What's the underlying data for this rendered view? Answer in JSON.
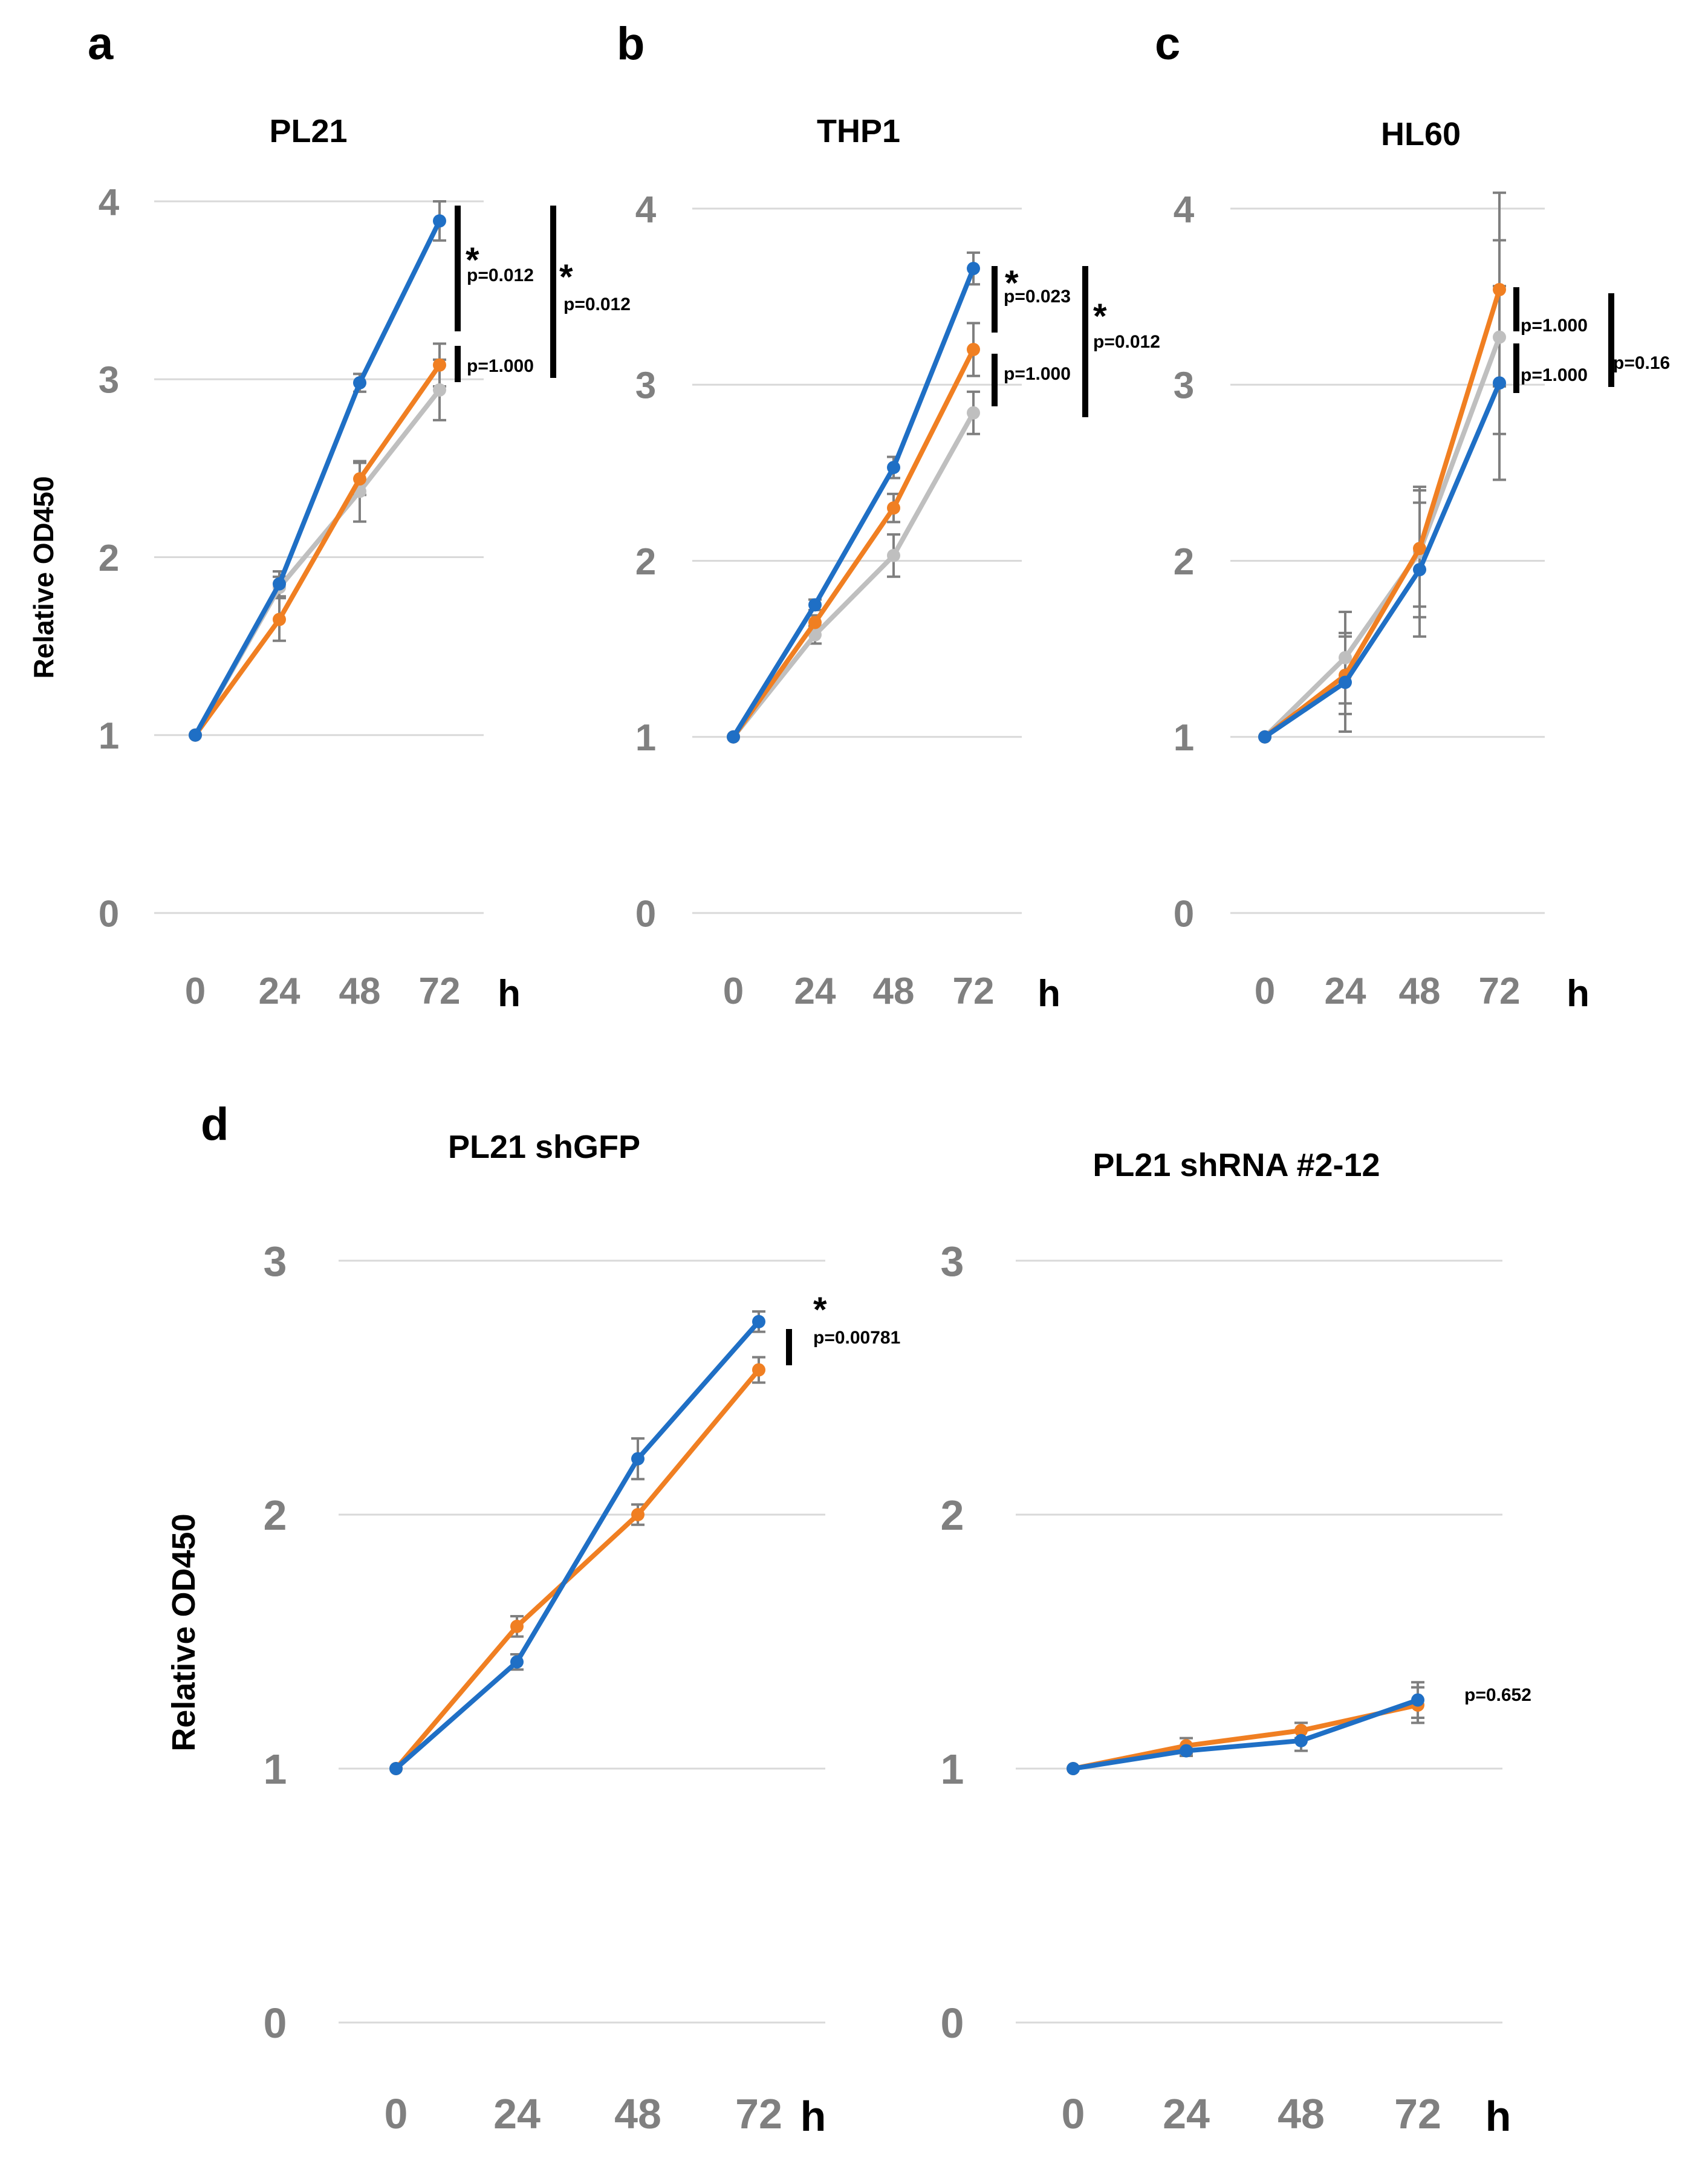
{
  "colors": {
    "blue": "#1f6fc5",
    "orange": "#f07f22",
    "gray": "#bfbfbf",
    "grid": "#d9d9d9",
    "tick": "#808080",
    "errorbar": "#7f7f7f"
  },
  "y_axis_label": "Relative OD450",
  "chart_data": [
    {
      "type": "line",
      "panel": "a",
      "title": "PL21",
      "categories": [
        "0",
        "24",
        "48",
        "72"
      ],
      "xunit": "h",
      "ylabel": "Relative OD450",
      "ylim": [
        0,
        4
      ],
      "yticks": [
        0,
        1,
        2,
        3,
        4
      ],
      "series": [
        {
          "name": "blue",
          "color": "blue",
          "values": [
            1.0,
            1.85,
            2.98,
            3.89
          ],
          "errors": [
            0,
            0.07,
            0.05,
            0.11
          ]
        },
        {
          "name": "orange",
          "color": "orange",
          "values": [
            1.0,
            1.65,
            2.44,
            3.08
          ],
          "errors": [
            0,
            0.12,
            0.09,
            0.12
          ]
        },
        {
          "name": "gray",
          "color": "gray",
          "values": [
            1.0,
            1.83,
            2.37,
            2.94
          ],
          "errors": [
            0,
            0.06,
            0.17,
            0.17
          ]
        }
      ],
      "annotations": [
        {
          "star": "*",
          "text": "p=0.012"
        },
        {
          "star": "",
          "text": "p=1.000"
        },
        {
          "star": "*",
          "text": "p=0.012"
        }
      ]
    },
    {
      "type": "line",
      "panel": "b",
      "title": "THP1",
      "categories": [
        "0",
        "24",
        "48",
        "72"
      ],
      "xunit": "h",
      "ylim": [
        0,
        4
      ],
      "yticks": [
        0,
        1,
        2,
        3,
        4
      ],
      "series": [
        {
          "name": "blue",
          "color": "blue",
          "values": [
            1.0,
            1.75,
            2.53,
            3.66
          ],
          "errors": [
            0,
            0.03,
            0.06,
            0.09
          ]
        },
        {
          "name": "orange",
          "color": "orange",
          "values": [
            1.0,
            1.65,
            2.3,
            3.2
          ],
          "errors": [
            0,
            0.04,
            0.08,
            0.15
          ]
        },
        {
          "name": "gray",
          "color": "gray",
          "values": [
            1.0,
            1.58,
            2.03,
            2.84
          ],
          "errors": [
            0,
            0.05,
            0.12,
            0.12
          ]
        }
      ],
      "annotations": [
        {
          "star": "*",
          "text": "p=0.023"
        },
        {
          "star": "",
          "text": "p=1.000"
        },
        {
          "star": "*",
          "text": "p=0.012"
        }
      ]
    },
    {
      "type": "line",
      "panel": "c",
      "title": "HL60",
      "categories": [
        "0",
        "24",
        "48",
        "72"
      ],
      "xunit": "h",
      "ylim": [
        0,
        4
      ],
      "yticks": [
        0,
        1,
        2,
        3,
        4
      ],
      "series": [
        {
          "name": "blue",
          "color": "blue",
          "values": [
            1.0,
            1.31,
            1.95,
            3.01
          ],
          "errors": [
            0,
            0.28,
            0.38,
            0.55
          ]
        },
        {
          "name": "orange",
          "color": "orange",
          "values": [
            1.0,
            1.35,
            2.07,
            3.54
          ],
          "errors": [
            0,
            0.22,
            0.33,
            0.55
          ]
        },
        {
          "name": "gray",
          "color": "gray",
          "values": [
            1.0,
            1.45,
            2.05,
            3.27
          ],
          "errors": [
            0,
            0.26,
            0.37,
            0.55
          ]
        }
      ],
      "annotations": [
        {
          "star": "",
          "text": "p=1.000"
        },
        {
          "star": "",
          "text": "p=1.000"
        },
        {
          "star": "",
          "text": "p=0.16"
        }
      ]
    },
    {
      "type": "line",
      "panel": "d",
      "title": "PL21 shGFP",
      "categories": [
        "0",
        "24",
        "48",
        "72"
      ],
      "xunit": "h",
      "ylabel": "Relative OD450",
      "ylim": [
        0,
        3
      ],
      "yticks": [
        0,
        1,
        2,
        3
      ],
      "series": [
        {
          "name": "blue",
          "color": "blue",
          "values": [
            1.0,
            1.42,
            2.22,
            2.76
          ],
          "errors": [
            0,
            0.03,
            0.08,
            0.04
          ]
        },
        {
          "name": "orange",
          "color": "orange",
          "values": [
            1.0,
            1.56,
            2.0,
            2.57
          ],
          "errors": [
            0,
            0.04,
            0.04,
            0.05
          ]
        }
      ],
      "annotations": [
        {
          "star": "*",
          "text": "p=0.00781"
        }
      ]
    },
    {
      "type": "line",
      "panel": "",
      "title": "PL21 shRNA #2-12",
      "categories": [
        "0",
        "24",
        "48",
        "72"
      ],
      "xunit": "h",
      "ylim": [
        0,
        3
      ],
      "yticks": [
        0,
        1,
        2,
        3
      ],
      "series": [
        {
          "name": "blue",
          "color": "blue",
          "values": [
            1.0,
            1.07,
            1.11,
            1.27
          ],
          "errors": [
            0,
            0.02,
            0.04,
            0.07
          ]
        },
        {
          "name": "orange",
          "color": "orange",
          "values": [
            1.0,
            1.09,
            1.15,
            1.25
          ],
          "errors": [
            0,
            0.03,
            0.03,
            0.07
          ]
        }
      ],
      "annotations": [
        {
          "star": "",
          "text": "p=0.652"
        }
      ]
    }
  ]
}
